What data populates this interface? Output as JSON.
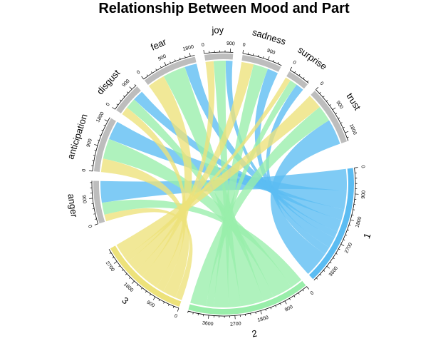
{
  "chart_data": {
    "type": "chord",
    "title": "Relationship Between Mood and Part",
    "sectors": [
      {
        "name": "1",
        "group": "part",
        "color": "#5bbcf2",
        "max_tick": 4500
      },
      {
        "name": "2",
        "group": "part",
        "color": "#99eeaa",
        "max_tick": 4500
      },
      {
        "name": "3",
        "group": "part",
        "color": "#ede27a",
        "max_tick": 2700
      },
      {
        "name": "anger",
        "group": "mood",
        "color": "#bdbdbd",
        "max_tick": 900
      },
      {
        "name": "anticipation",
        "group": "mood",
        "color": "#bdbdbd",
        "max_tick": 1800
      },
      {
        "name": "disgust",
        "group": "mood",
        "color": "#bdbdbd",
        "max_tick": 900
      },
      {
        "name": "fear",
        "group": "mood",
        "color": "#bdbdbd",
        "max_tick": 1800
      },
      {
        "name": "joy",
        "group": "mood",
        "color": "#bdbdbd",
        "max_tick": 900
      },
      {
        "name": "sadness",
        "group": "mood",
        "color": "#bdbdbd",
        "max_tick": 900
      },
      {
        "name": "surprise",
        "group": "mood",
        "color": "#bdbdbd",
        "max_tick": 900
      },
      {
        "name": "trust",
        "group": "mood",
        "color": "#bdbdbd",
        "max_tick": 1800
      }
    ],
    "matrix_rows": [
      "1",
      "2",
      "3"
    ],
    "matrix_cols": [
      "trust",
      "surprise",
      "sadness",
      "joy",
      "fear",
      "disgust",
      "anticipation",
      "anger"
    ],
    "matrix": [
      [
        950,
        300,
        400,
        250,
        450,
        400,
        700,
        800
      ],
      [
        600,
        280,
        550,
        450,
        850,
        400,
        750,
        450
      ],
      [
        550,
        200,
        450,
        300,
        650,
        300,
        500,
        250
      ]
    ]
  }
}
